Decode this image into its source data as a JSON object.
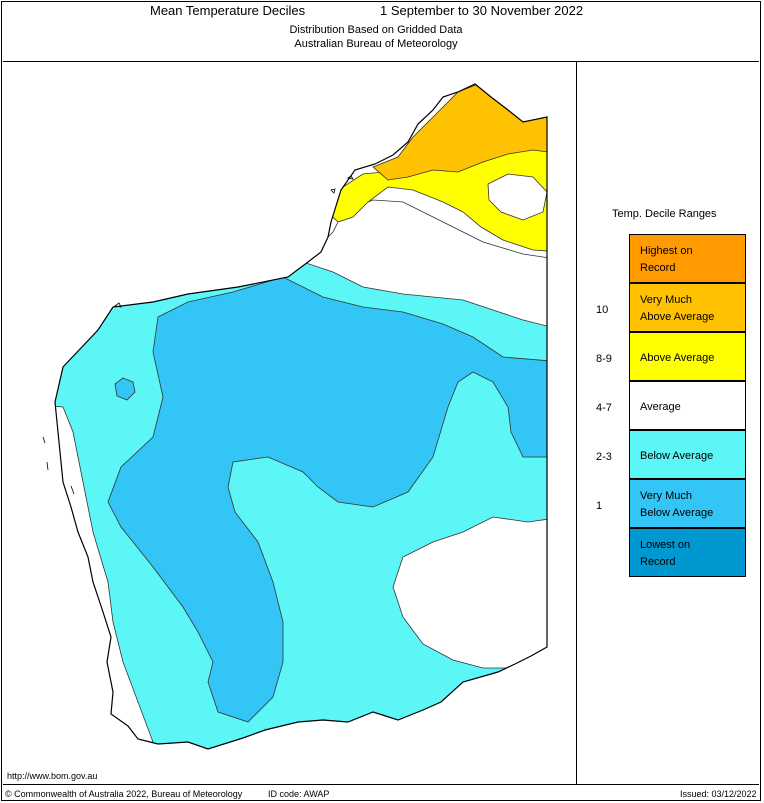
{
  "header": {
    "title": "Mean Temperature Deciles",
    "period": "1 September to 30 November 2022",
    "subtitle_1": "Distribution Based on Gridded Data",
    "subtitle_2": "Australian Bureau of Meteorology"
  },
  "legend": {
    "title": "Temp. Decile Ranges",
    "items": [
      {
        "label_line1": "Highest on",
        "label_line2": "Record",
        "range": "",
        "color": "#ff9a00"
      },
      {
        "label_line1": "Very Much",
        "label_line2": "Above Average",
        "range": "10",
        "color": "#ffc200"
      },
      {
        "label_line1": "Above Average",
        "label_line2": "",
        "range": "8-9",
        "color": "#ffff00"
      },
      {
        "label_line1": "Average",
        "label_line2": "",
        "range": "4-7",
        "color": "#ffffff"
      },
      {
        "label_line1": "Below Average",
        "label_line2": "",
        "range": "2-3",
        "color": "#5cf6f6"
      },
      {
        "label_line1": "Very Much",
        "label_line2": "Below Average",
        "range": "1",
        "color": "#33c5f5"
      },
      {
        "label_line1": "Lowest on",
        "label_line2": "Record",
        "range": "",
        "color": "#0098d0"
      }
    ]
  },
  "map": {
    "region": "Western Australia",
    "colors": {
      "highest": "#ff9a00",
      "very_much_above": "#ffc200",
      "above": "#ffff00",
      "average": "#ffffff",
      "below": "#5cf6f6",
      "very_much_below": "#33c5f5"
    }
  },
  "footer": {
    "url": "http://www.bom.gov.au",
    "copyright": "© Commonwealth of Australia 2022, Bureau of Meteorology",
    "id_code": "ID code: AWAP",
    "issued": "Issued: 03/12/2022"
  }
}
